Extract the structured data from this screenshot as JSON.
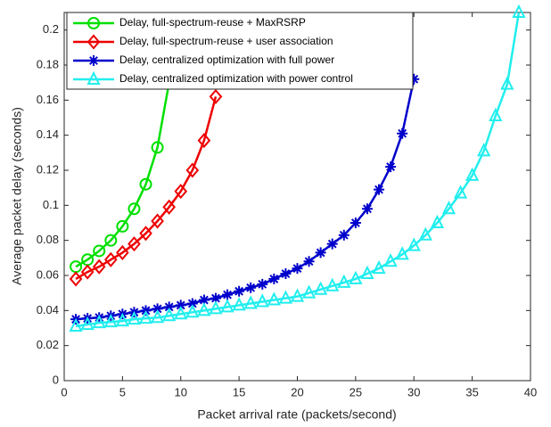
{
  "chart_data": {
    "type": "line",
    "xlabel": "Packet arrival rate (packets/second)",
    "ylabel": "Average packet delay (seconds)",
    "xlim": [
      0,
      40
    ],
    "xticks": [
      0,
      5,
      10,
      15,
      20,
      25,
      30,
      35,
      40
    ],
    "ylim": [
      0,
      0.21
    ],
    "yticks": [
      0,
      0.02,
      0.04,
      0.06,
      0.08,
      0.1,
      0.12,
      0.14,
      0.16,
      0.18,
      0.2
    ],
    "legend": "upper left",
    "series": [
      {
        "name": "Delay, full-spectrum-reuse + MaxRSRP",
        "color": "#00e000",
        "marker": "o",
        "x": [
          1,
          2,
          3,
          4,
          5,
          6,
          7,
          8,
          9
        ],
        "values": [
          0.065,
          0.069,
          0.074,
          0.08,
          0.088,
          0.098,
          0.112,
          0.133,
          0.17
        ]
      },
      {
        "name": "Delay, full-spectrum-reuse + user association",
        "color": "#ee0000",
        "marker": "d",
        "x": [
          1,
          2,
          3,
          4,
          5,
          6,
          7,
          8,
          9,
          10,
          11,
          12,
          13
        ],
        "values": [
          0.058,
          0.062,
          0.065,
          0.069,
          0.073,
          0.078,
          0.084,
          0.091,
          0.099,
          0.108,
          0.12,
          0.137,
          0.162
        ]
      },
      {
        "name": "Delay, centralized optimization with full power",
        "color": "#0000cc",
        "marker": "*",
        "x": [
          1,
          2,
          3,
          4,
          5,
          6,
          7,
          8,
          9,
          10,
          11,
          12,
          13,
          14,
          15,
          16,
          17,
          18,
          19,
          20,
          21,
          22,
          23,
          24,
          25,
          26,
          27,
          28,
          29,
          30
        ],
        "values": [
          0.035,
          0.0355,
          0.036,
          0.037,
          0.038,
          0.039,
          0.04,
          0.041,
          0.042,
          0.043,
          0.044,
          0.046,
          0.047,
          0.049,
          0.051,
          0.053,
          0.055,
          0.058,
          0.061,
          0.064,
          0.068,
          0.073,
          0.078,
          0.083,
          0.09,
          0.098,
          0.109,
          0.122,
          0.141,
          0.172
        ]
      },
      {
        "name": "Delay, centralized optimization with power control",
        "color": "#22eeee",
        "marker": "^",
        "x": [
          1,
          2,
          3,
          4,
          5,
          6,
          7,
          8,
          9,
          10,
          11,
          12,
          13,
          14,
          15,
          16,
          17,
          18,
          19,
          20,
          21,
          22,
          23,
          24,
          25,
          26,
          27,
          28,
          29,
          30,
          31,
          32,
          33,
          34,
          35,
          36,
          37,
          38,
          39
        ],
        "values": [
          0.031,
          0.032,
          0.033,
          0.0335,
          0.034,
          0.035,
          0.0355,
          0.036,
          0.037,
          0.038,
          0.039,
          0.04,
          0.041,
          0.042,
          0.043,
          0.044,
          0.045,
          0.046,
          0.047,
          0.048,
          0.05,
          0.052,
          0.054,
          0.056,
          0.058,
          0.061,
          0.064,
          0.068,
          0.072,
          0.077,
          0.083,
          0.09,
          0.098,
          0.107,
          0.117,
          0.131,
          0.151,
          0.169,
          0.21
        ]
      }
    ]
  }
}
